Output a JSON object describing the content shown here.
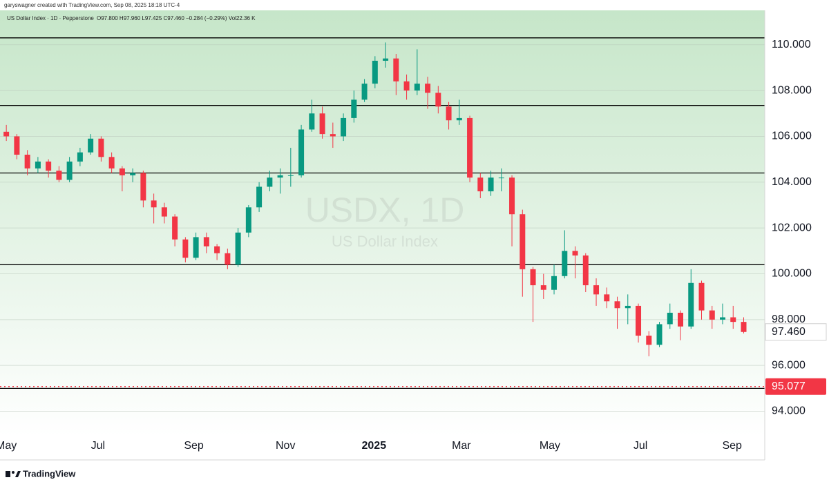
{
  "header": {
    "credit": "garyswagner created with TradingView.com, Sep 08, 2025 18:18 UTC-4",
    "symbol": "US Dollar Index · 1D · Pepperstone",
    "quote": "O97.800 H97.960 L97.425 C97.460 −0.284 (−0.29%) Vol22.36 K"
  },
  "footer": {
    "brand": "TradingView"
  },
  "chart_data": {
    "type": "candlestick",
    "watermark": "USDX, 1D",
    "watermark_subtitle": "US Dollar Index",
    "up_color": "#089981",
    "down_color": "#f23645",
    "open": [
      106.2,
      106.0,
      105.2,
      104.6,
      104.9,
      104.5,
      104.1,
      104.9,
      105.3,
      105.9,
      105.1,
      104.6,
      104.3,
      104.4,
      103.2,
      102.9,
      102.5,
      101.5,
      100.7,
      101.6,
      101.2,
      100.9,
      100.4,
      101.8,
      102.9,
      103.8,
      104.2,
      104.3,
      104.3,
      106.3,
      107.0,
      106.1,
      106.0,
      106.8,
      107.6,
      108.3,
      109.3,
      109.4,
      108.4,
      108.0,
      108.3,
      107.9,
      107.3,
      106.7,
      106.8,
      104.2,
      103.6,
      104.2,
      104.2,
      102.6,
      100.2,
      99.5,
      99.3,
      99.9,
      101.0,
      100.8,
      99.5,
      99.1,
      98.8,
      98.5,
      98.6,
      97.3,
      96.9,
      97.8,
      98.3,
      97.7,
      99.6,
      98.4,
      98.0,
      98.1,
      97.9
    ],
    "high": [
      106.5,
      106.1,
      105.4,
      105.1,
      105.0,
      104.7,
      105.1,
      105.5,
      106.1,
      106.0,
      105.3,
      104.7,
      104.6,
      104.5,
      103.5,
      103.1,
      102.6,
      101.6,
      101.8,
      101.8,
      101.3,
      101.1,
      102.0,
      103.0,
      104.0,
      104.5,
      104.6,
      105.5,
      106.5,
      107.6,
      107.3,
      106.6,
      107.0,
      108.0,
      108.5,
      109.5,
      110.1,
      109.6,
      108.7,
      109.8,
      108.6,
      108.2,
      107.5,
      107.6,
      106.9,
      104.4,
      104.5,
      104.6,
      104.3,
      102.8,
      100.3,
      100.0,
      100.4,
      101.9,
      101.2,
      100.9,
      99.8,
      99.4,
      99.0,
      99.1,
      98.7,
      97.5,
      97.9,
      98.7,
      98.4,
      100.2,
      99.7,
      98.6,
      98.7,
      98.6,
      98.1
    ],
    "low": [
      105.8,
      105.0,
      104.3,
      104.4,
      104.2,
      104.0,
      104.0,
      104.7,
      105.2,
      104.9,
      104.4,
      103.6,
      104.0,
      102.9,
      102.2,
      102.2,
      101.2,
      100.5,
      100.6,
      100.9,
      100.6,
      100.2,
      100.3,
      101.6,
      102.7,
      103.6,
      103.5,
      103.8,
      104.2,
      106.2,
      105.9,
      105.5,
      105.8,
      106.6,
      107.5,
      108.1,
      109.0,
      107.8,
      107.6,
      107.8,
      107.2,
      107.0,
      106.3,
      106.5,
      104.0,
      103.3,
      103.4,
      103.6,
      101.2,
      99.0,
      97.9,
      98.9,
      99.1,
      99.8,
      99.8,
      99.2,
      98.6,
      98.5,
      97.6,
      97.8,
      97.0,
      96.4,
      96.8,
      97.6,
      97.1,
      97.6,
      98.0,
      97.6,
      97.8,
      97.6,
      97.4
    ],
    "close": [
      106.0,
      105.2,
      104.6,
      104.9,
      104.5,
      104.1,
      104.9,
      105.3,
      105.9,
      105.1,
      104.6,
      104.3,
      104.4,
      103.2,
      102.9,
      102.5,
      101.5,
      100.7,
      101.6,
      101.2,
      100.9,
      100.4,
      101.8,
      102.9,
      103.8,
      104.2,
      104.3,
      104.3,
      106.3,
      107.0,
      106.1,
      106.0,
      106.8,
      107.6,
      108.3,
      109.3,
      109.4,
      108.4,
      108.0,
      108.3,
      107.9,
      107.3,
      106.7,
      106.8,
      104.2,
      103.6,
      104.2,
      104.2,
      102.6,
      100.2,
      99.5,
      99.3,
      99.9,
      101.0,
      100.8,
      99.5,
      99.1,
      98.8,
      98.5,
      98.6,
      97.3,
      96.9,
      97.8,
      98.3,
      97.7,
      99.6,
      98.4,
      98.0,
      98.1,
      97.9,
      97.46
    ],
    "xlim": [
      -0.6,
      72.0
    ],
    "xticks": [
      {
        "value": 0,
        "label": "May"
      },
      {
        "value": 8.7,
        "label": "Jul"
      },
      {
        "value": 17.8,
        "label": "Sep"
      },
      {
        "value": 26.5,
        "label": "Nov"
      },
      {
        "value": 34.9,
        "label": "2025"
      },
      {
        "value": 43.2,
        "label": "Mar"
      },
      {
        "value": 51.6,
        "label": "May"
      },
      {
        "value": 60.2,
        "label": "Jul"
      },
      {
        "value": 68.9,
        "label": "Sep"
      }
    ],
    "ylim": [
      92.9,
      111.5
    ],
    "yticks": [
      {
        "value": 94,
        "label": "94.000"
      },
      {
        "value": 96,
        "label": "96.000"
      },
      {
        "value": 98,
        "label": "98.000"
      },
      {
        "value": 100,
        "label": "100.000"
      },
      {
        "value": 102,
        "label": "102.000"
      },
      {
        "value": 104,
        "label": "104.000"
      },
      {
        "value": 106,
        "label": "106.000"
      },
      {
        "value": 108,
        "label": "108.000"
      },
      {
        "value": 110,
        "label": "110.000"
      }
    ],
    "grid": true,
    "hlines": [
      110.3,
      107.35,
      104.4,
      100.4,
      95.0
    ],
    "alert_level": {
      "value": 95.077,
      "label": "95.077"
    },
    "last_price": {
      "value": 97.46,
      "label": "97.460"
    }
  }
}
